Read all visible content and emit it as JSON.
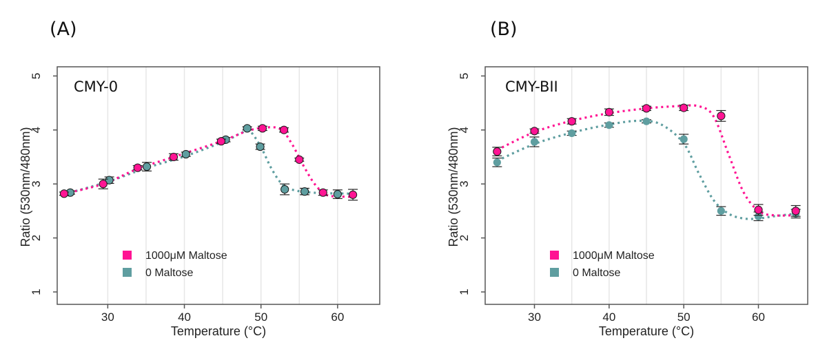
{
  "figure": {
    "panels": [
      "(A)",
      "(B)"
    ]
  },
  "colors": {
    "maltose_1000": "#FF1493",
    "maltose_0": "#5F9EA0",
    "grid": "#e6e6e6",
    "axis": "#555555",
    "errorbar": "#222222"
  },
  "chart_data": [
    {
      "type": "scatter",
      "panel": "(A)",
      "title": "CMY-0",
      "xlabel": "Temperature (°C)",
      "ylabel": "Ratio (530nm/480nm)",
      "xlim": [
        23.4,
        65.5
      ],
      "ylim": [
        0.77,
        5.17
      ],
      "xticks": [
        30,
        40,
        50,
        60
      ],
      "yticks": [
        1,
        2,
        3,
        4,
        5
      ],
      "grid": "vertical",
      "grid_x": [
        30,
        35,
        40,
        45,
        50,
        55,
        60
      ],
      "legend_position": "bottom-left",
      "series": [
        {
          "name": "1000μM Maltose",
          "color_key": "maltose_1000",
          "outline": true,
          "x": [
            24.3,
            29.4,
            33.9,
            38.6,
            44.8,
            50.2,
            53.0,
            55.0,
            58.1,
            62.0
          ],
          "y": [
            2.82,
            3.0,
            3.3,
            3.5,
            3.79,
            4.03,
            4.0,
            3.45,
            2.84,
            2.8
          ],
          "err": [
            0.03,
            0.09,
            0.04,
            0.06,
            0.04,
            0.04,
            0.04,
            0.03,
            0.05,
            0.1
          ],
          "fit": {
            "x": [
              24.3,
              29.4,
              33.9,
              38.6,
              44.8,
              48.0,
              50.2,
              52.5,
              54.0,
              55.5,
              57.0,
              58.5,
              60.0,
              62.0
            ],
            "y": [
              2.82,
              3.0,
              3.28,
              3.5,
              3.79,
              3.97,
              4.04,
              4.02,
              3.75,
              3.35,
              3.0,
              2.8,
              2.77,
              2.76
            ]
          }
        },
        {
          "name": "0 Maltose",
          "color_key": "maltose_0",
          "outline": true,
          "x": [
            25.1,
            30.2,
            35.1,
            40.2,
            45.4,
            48.2,
            49.9,
            53.1,
            55.7,
            60.0
          ],
          "y": [
            2.84,
            3.07,
            3.32,
            3.55,
            3.82,
            4.03,
            3.69,
            2.9,
            2.86,
            2.81
          ],
          "err": [
            0.03,
            0.06,
            0.08,
            0.04,
            0.04,
            0.03,
            0.05,
            0.1,
            0.06,
            0.08
          ],
          "fit": {
            "x": [
              25.1,
              30.2,
              35.1,
              40.2,
              45.4,
              47.5,
              48.6,
              50.0,
              51.5,
              53.0,
              54.5,
              56.0,
              58.0,
              62.0
            ],
            "y": [
              2.84,
              3.05,
              3.3,
              3.52,
              3.8,
              3.95,
              3.97,
              3.68,
              3.25,
              2.96,
              2.88,
              2.85,
              2.83,
              2.82
            ]
          }
        }
      ]
    },
    {
      "type": "scatter",
      "panel": "(B)",
      "title": "CMY-BII",
      "xlabel": "Temperature (°C)",
      "ylabel": "Ratio (530nm/480nm)",
      "xlim": [
        23.4,
        66.6
      ],
      "ylim": [
        0.77,
        5.17
      ],
      "xticks": [
        30,
        40,
        50,
        60
      ],
      "yticks": [
        1,
        2,
        3,
        4,
        5
      ],
      "grid": "vertical",
      "grid_x": [
        30,
        35,
        40,
        45,
        50,
        55,
        60
      ],
      "legend_position": "bottom-left",
      "series": [
        {
          "name": "1000μM Maltose",
          "color_key": "maltose_1000",
          "outline": true,
          "x": [
            25,
            30,
            35,
            40,
            45,
            50,
            55,
            60,
            65
          ],
          "y": [
            3.6,
            3.98,
            4.16,
            4.33,
            4.4,
            4.41,
            4.26,
            2.52,
            2.5
          ],
          "err": [
            0.08,
            0.04,
            0.05,
            0.06,
            0.04,
            0.05,
            0.1,
            0.1,
            0.1
          ],
          "fit": {
            "x": [
              25,
              30,
              35,
              40,
              45,
              49,
              52,
              54,
              56,
              58,
              60,
              62,
              65
            ],
            "y": [
              3.63,
              3.96,
              4.17,
              4.31,
              4.4,
              4.44,
              4.44,
              4.25,
              3.55,
              2.85,
              2.5,
              2.42,
              2.42
            ]
          }
        },
        {
          "name": "0 Maltose",
          "color_key": "maltose_0",
          "outline": false,
          "x": [
            25,
            30,
            35,
            40,
            45,
            50,
            55,
            60,
            65
          ],
          "y": [
            3.4,
            3.78,
            3.94,
            4.09,
            4.16,
            3.83,
            2.5,
            2.4,
            2.45
          ],
          "err": [
            0.08,
            0.09,
            0.04,
            0.04,
            0.03,
            0.09,
            0.08,
            0.08,
            0.08
          ],
          "fit": {
            "x": [
              25,
              30,
              35,
              40,
              44,
              47,
              50,
              52,
              54,
              56,
              58,
              60,
              62,
              65
            ],
            "y": [
              3.43,
              3.74,
              3.95,
              4.1,
              4.17,
              4.1,
              3.75,
              3.2,
              2.7,
              2.45,
              2.36,
              2.36,
              2.4,
              2.45
            ]
          }
        }
      ]
    }
  ]
}
